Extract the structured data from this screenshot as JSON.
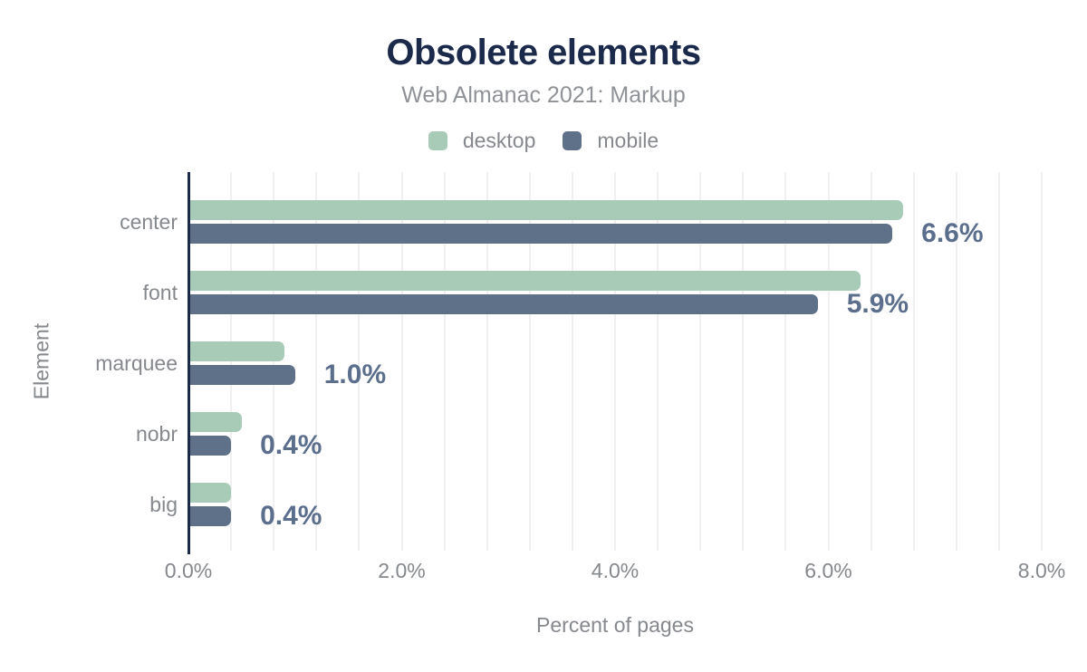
{
  "chart_data": {
    "type": "bar",
    "orientation": "horizontal",
    "title": "Obsolete elements",
    "subtitle": "Web Almanac 2021: Markup",
    "xlabel": "Percent of pages",
    "ylabel": "Element",
    "categories": [
      "center",
      "font",
      "marquee",
      "nobr",
      "big"
    ],
    "series": [
      {
        "name": "desktop",
        "color": "#A8CBB8",
        "values": [
          6.7,
          6.3,
          0.9,
          0.5,
          0.4
        ]
      },
      {
        "name": "mobile",
        "color": "#5F7089",
        "values": [
          6.6,
          5.9,
          1.0,
          0.4,
          0.4
        ]
      }
    ],
    "data_labels": {
      "series": "mobile",
      "texts": [
        "6.6%",
        "5.9%",
        "1.0%",
        "0.4%",
        "0.4%"
      ],
      "color": "#5B6F8D"
    },
    "xlim": [
      0,
      8
    ],
    "xticks": [
      {
        "value": 0,
        "label": "0.0%"
      },
      {
        "value": 2,
        "label": "2.0%"
      },
      {
        "value": 4,
        "label": "4.0%"
      },
      {
        "value": 6,
        "label": "6.0%"
      },
      {
        "value": 8,
        "label": "8.0%"
      }
    ],
    "grid": {
      "show": true,
      "step": 0.4,
      "color": "#F0F0F1"
    },
    "axis_color": "#1B2A4A",
    "legend_position": "top"
  }
}
